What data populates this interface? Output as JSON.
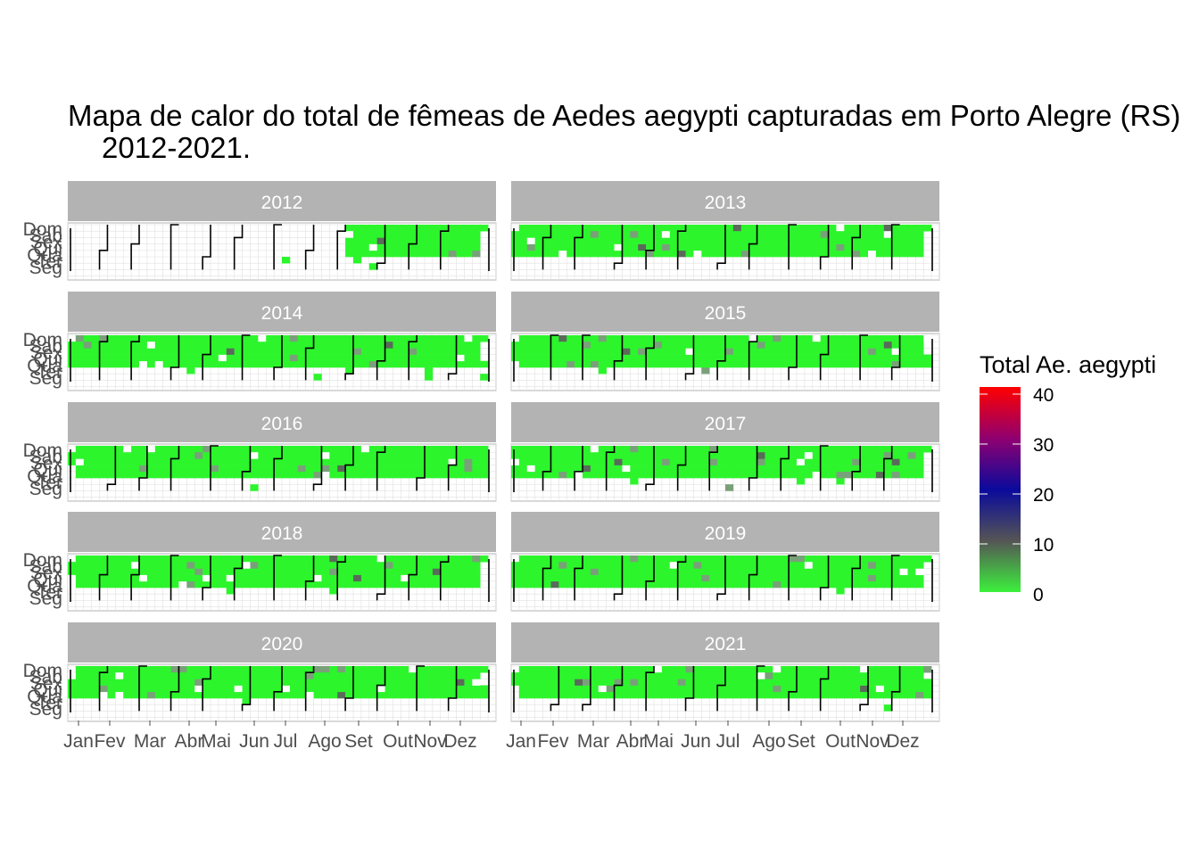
{
  "title": {
    "line1": "Mapa de calor do total de fêmeas de Aedes aegypti capturadas em Porto Alegre (RS)",
    "line2": "2012-2021."
  },
  "chart_data": {
    "type": "heatmap",
    "subtype": "calendar",
    "title": "Mapa de calor do total de fêmeas de Aedes aegypti capturadas em Porto Alegre (RS) 2012-2021.",
    "panels": [
      "2012",
      "2013",
      "2014",
      "2015",
      "2016",
      "2017",
      "2018",
      "2019",
      "2020",
      "2021"
    ],
    "weekday_labels": [
      "Dom",
      "Sab",
      "Sex",
      "Qui",
      "Qua",
      "Ter",
      "Seg"
    ],
    "month_labels": [
      "Jan",
      "Fev",
      "Mar",
      "Abr",
      "Mai",
      "Jun",
      "Jul",
      "Ago",
      "Set",
      "Out",
      "Nov",
      "Dez"
    ],
    "legend": {
      "title": "Total Ae. aegypti",
      "ticks": [
        "40",
        "30",
        "20",
        "10",
        "0"
      ],
      "range": [
        0,
        42
      ],
      "position": "right"
    },
    "colors": {
      "low": "#2cf52c",
      "mid_low": "#555555",
      "mid": "#0a0a9c",
      "mid_high": "#900070",
      "high": "#ff0000",
      "missing": "#ffffff",
      "strip": "#b3b3b3",
      "grid": "#e0e0e0"
    },
    "data_coverage": {
      "2012": "data starts around September; earlier weeks empty",
      "other_years": "Tuesday–Sunday rows filled with low counts (mostly 0–5), Monday row mostly empty",
      "note": "scattered missing (white) cells and a few grey cells with counts up to about 8"
    }
  }
}
